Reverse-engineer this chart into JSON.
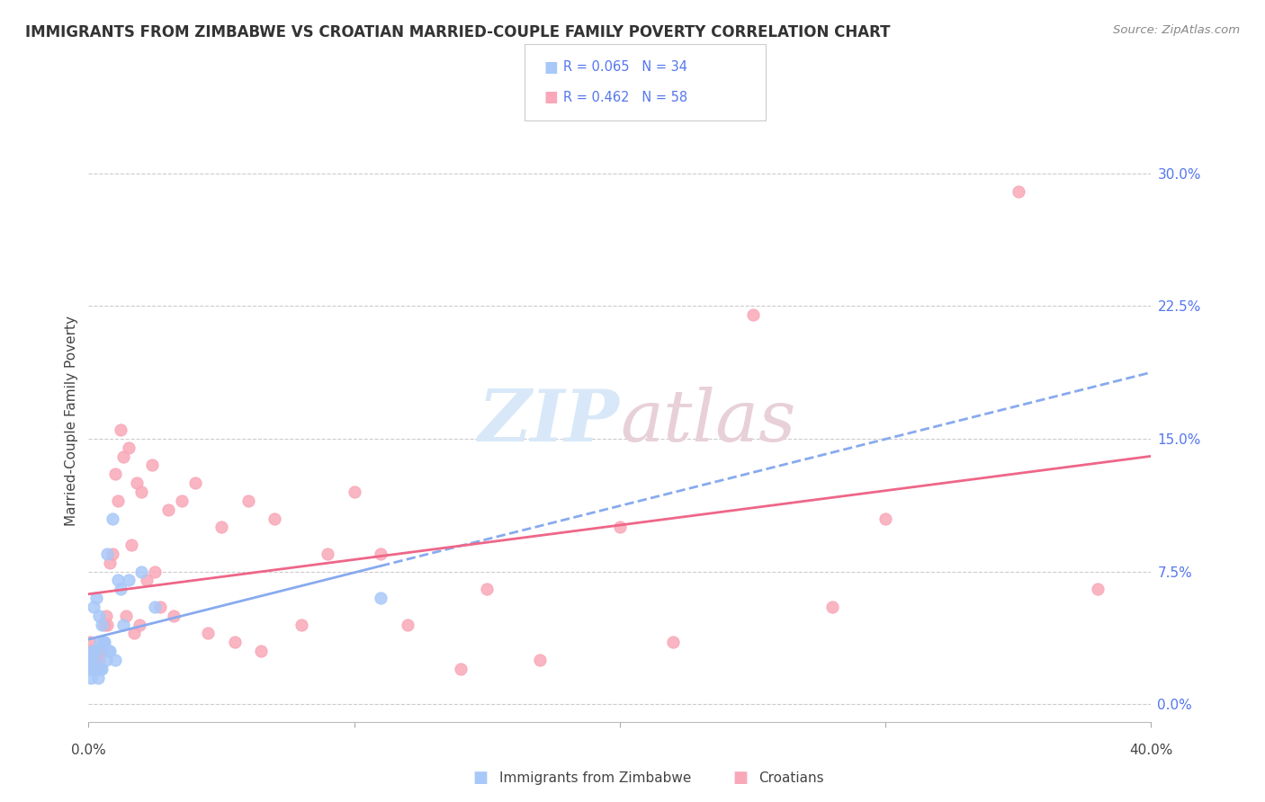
{
  "title": "IMMIGRANTS FROM ZIMBABWE VS CROATIAN MARRIED-COUPLE FAMILY POVERTY CORRELATION CHART",
  "source": "Source: ZipAtlas.com",
  "ylabel": "Married-Couple Family Poverty",
  "ytick_vals": [
    0.0,
    7.5,
    15.0,
    22.5,
    30.0
  ],
  "xlim": [
    0.0,
    40.0
  ],
  "ylim": [
    -1.0,
    33.0
  ],
  "color_zimbabwe": "#a8c8f8",
  "color_croatia": "#f8a8b8",
  "color_line_zimbabwe": "#88aaee",
  "color_line_croatia": "#ee6688",
  "watermark_color": "#d8e8f8",
  "watermark_color2": "#e8d0d8",
  "zimbabwe_x": [
    0.05,
    0.08,
    0.1,
    0.12,
    0.15,
    0.18,
    0.2,
    0.22,
    0.25,
    0.28,
    0.3,
    0.32,
    0.35,
    0.38,
    0.4,
    0.42,
    0.45,
    0.48,
    0.5,
    0.55,
    0.6,
    0.65,
    0.7,
    0.75,
    0.8,
    0.9,
    1.0,
    1.1,
    1.2,
    1.3,
    1.5,
    2.0,
    2.5,
    11.0
  ],
  "zimbabwe_y": [
    2.5,
    1.5,
    2.0,
    2.0,
    3.0,
    2.5,
    5.5,
    3.0,
    2.0,
    3.0,
    6.0,
    2.0,
    1.5,
    2.0,
    5.0,
    3.5,
    2.0,
    2.0,
    4.5,
    3.5,
    3.5,
    2.5,
    8.5,
    3.0,
    3.0,
    10.5,
    2.5,
    7.0,
    6.5,
    4.5,
    7.0,
    7.5,
    5.5,
    6.0
  ],
  "croatia_x": [
    0.05,
    0.08,
    0.1,
    0.15,
    0.18,
    0.2,
    0.25,
    0.3,
    0.35,
    0.4,
    0.45,
    0.5,
    0.55,
    0.6,
    0.65,
    0.7,
    0.8,
    0.9,
    1.0,
    1.1,
    1.2,
    1.3,
    1.4,
    1.5,
    1.6,
    1.7,
    1.8,
    1.9,
    2.0,
    2.2,
    2.4,
    2.5,
    2.7,
    3.0,
    3.2,
    3.5,
    4.0,
    4.5,
    5.0,
    5.5,
    6.0,
    6.5,
    7.0,
    8.0,
    9.0,
    10.0,
    11.0,
    12.0,
    14.0,
    15.0,
    17.0,
    20.0,
    22.0,
    25.0,
    28.0,
    30.0,
    35.0,
    38.0
  ],
  "croatia_y": [
    3.5,
    2.5,
    3.0,
    2.0,
    2.5,
    3.0,
    2.5,
    3.0,
    2.0,
    2.5,
    3.0,
    3.0,
    3.5,
    4.5,
    5.0,
    4.5,
    8.0,
    8.5,
    13.0,
    11.5,
    15.5,
    14.0,
    5.0,
    14.5,
    9.0,
    4.0,
    12.5,
    4.5,
    12.0,
    7.0,
    13.5,
    7.5,
    5.5,
    11.0,
    5.0,
    11.5,
    12.5,
    4.0,
    10.0,
    3.5,
    11.5,
    3.0,
    10.5,
    4.5,
    8.5,
    12.0,
    8.5,
    4.5,
    2.0,
    6.5,
    2.5,
    10.0,
    3.5,
    22.0,
    5.5,
    10.5,
    29.0,
    6.5
  ]
}
